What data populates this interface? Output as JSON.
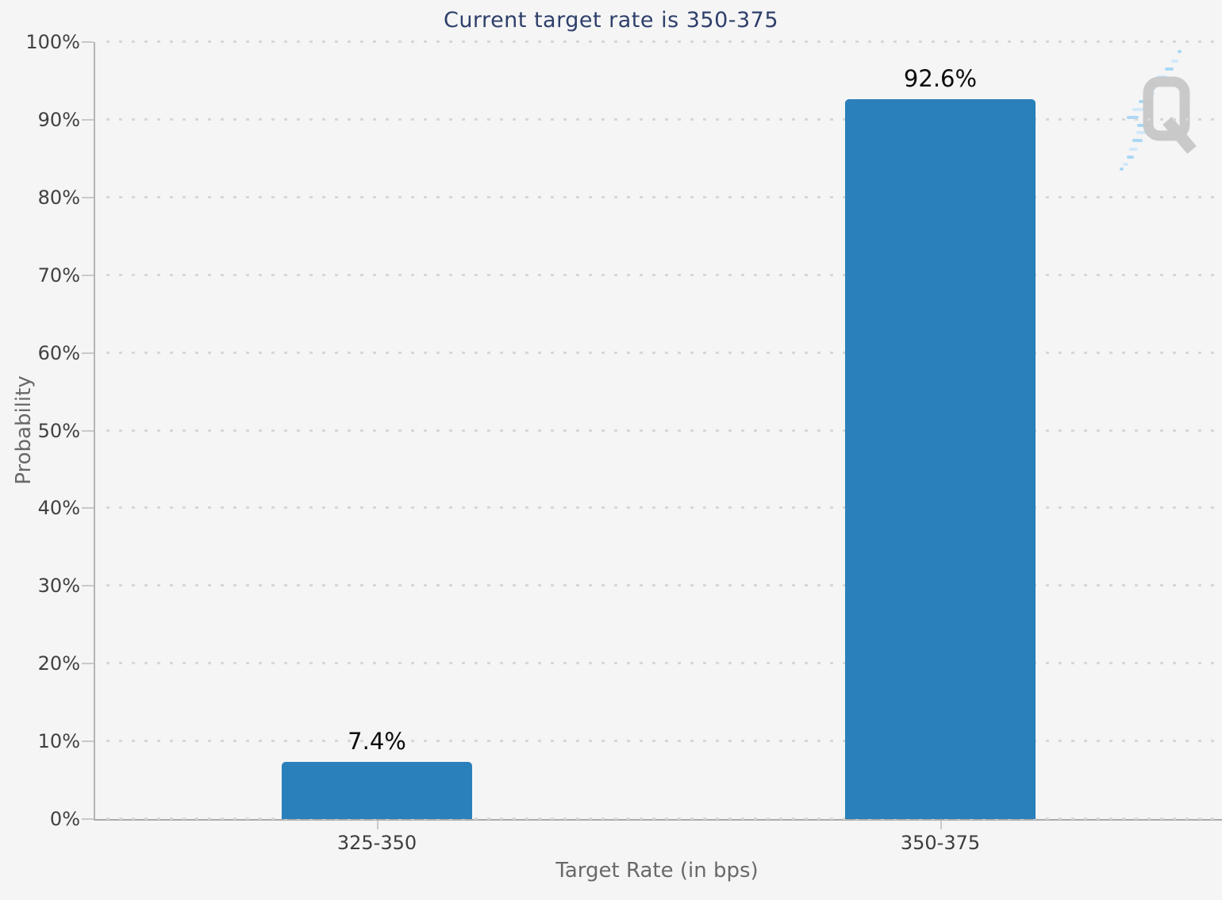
{
  "chart_data": {
    "type": "bar",
    "title": "Current target rate is 350-375",
    "categories": [
      "325-350",
      "350-375"
    ],
    "values": [
      7.4,
      92.6
    ],
    "value_labels": [
      "7.4%",
      "92.6%"
    ],
    "xlabel": "Target Rate (in bps)",
    "ylabel": "Probability",
    "ylim": [
      0,
      100
    ],
    "ytick_step": 10,
    "ytick_labels": [
      "0%",
      "10%",
      "20%",
      "30%",
      "40%",
      "50%",
      "60%",
      "70%",
      "80%",
      "90%",
      "100%"
    ],
    "grid": "dotted-horizontal",
    "legend": "none",
    "bar_color": "#2a80ba",
    "background_color": "#f5f5f6",
    "title_color": "#2e3f6a",
    "axis_label_color": "#696969",
    "tick_label_color": "#414141"
  },
  "watermark": {
    "icon": "quikstrike-q-logo",
    "q_color": "#c7c7c7",
    "streak_color": "#9ed3f4"
  }
}
